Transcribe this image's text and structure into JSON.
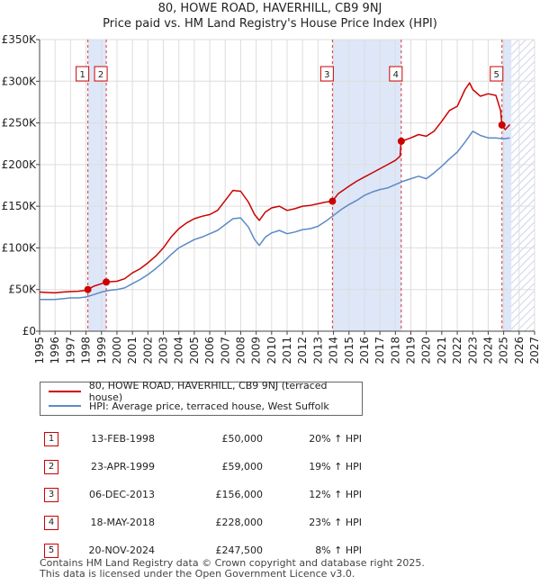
{
  "title": {
    "line1": "80, HOWE ROAD, HAVERHILL, CB9 9NJ",
    "line2": "Price paid vs. HM Land Registry's House Price Index (HPI)"
  },
  "legend": {
    "series1": "80, HOWE ROAD, HAVERHILL, CB9 9NJ (terraced house)",
    "series2": "HPI: Average price, terraced house, West Suffolk"
  },
  "colors": {
    "property": "#cc0000",
    "hpi": "#5b8ac6",
    "shade": "#dde7f8",
    "hatch": "#bcc8dc"
  },
  "sales": [
    {
      "num": "1",
      "date": "13-FEB-1998",
      "price": "£50,000",
      "hpi": "20% ↑ HPI"
    },
    {
      "num": "2",
      "date": "23-APR-1999",
      "price": "£59,000",
      "hpi": "19% ↑ HPI"
    },
    {
      "num": "3",
      "date": "06-DEC-2013",
      "price": "£156,000",
      "hpi": "12% ↑ HPI"
    },
    {
      "num": "4",
      "date": "18-MAY-2018",
      "price": "£228,000",
      "hpi": "23% ↑ HPI"
    },
    {
      "num": "5",
      "date": "20-NOV-2024",
      "price": "£247,500",
      "hpi": "8% ↑ HPI"
    }
  ],
  "footer": {
    "line1": "Contains HM Land Registry data © Crown copyright and database right 2025.",
    "line2": "This data is licensed under the Open Government Licence v3.0."
  },
  "chart_data": {
    "type": "line",
    "title": "Price paid vs. HM Land Registry's House Price Index (HPI)",
    "xlabel": "",
    "ylabel": "",
    "xlim": [
      1995,
      2027
    ],
    "ylim": [
      0,
      350000
    ],
    "yticks": [
      0,
      50000,
      100000,
      150000,
      200000,
      250000,
      300000,
      350000
    ],
    "ytick_labels": [
      "£0",
      "£50K",
      "£100K",
      "£150K",
      "£200K",
      "£250K",
      "£300K",
      "£350K"
    ],
    "xticks": [
      1995,
      1996,
      1997,
      1998,
      1999,
      2000,
      2001,
      2002,
      2003,
      2004,
      2005,
      2006,
      2007,
      2008,
      2009,
      2010,
      2011,
      2012,
      2013,
      2014,
      2015,
      2016,
      2017,
      2018,
      2019,
      2020,
      2021,
      2022,
      2023,
      2024,
      2025,
      2026,
      2027
    ],
    "grid": true,
    "shaded_periods": [
      [
        1998.12,
        1999.31
      ],
      [
        2013.93,
        2018.38
      ],
      [
        2024.89,
        2025.5
      ]
    ],
    "hatched_period": [
      2025.5,
      2027
    ],
    "sale_points": [
      {
        "label": "1",
        "x": 1998.12,
        "y": 50000
      },
      {
        "label": "2",
        "x": 1999.31,
        "y": 59000
      },
      {
        "label": "3",
        "x": 2013.93,
        "y": 156000
      },
      {
        "label": "4",
        "x": 2018.38,
        "y": 228000
      },
      {
        "label": "5",
        "x": 2024.89,
        "y": 247500
      }
    ],
    "series": [
      {
        "name": "80, HOWE ROAD, HAVERHILL, CB9 9NJ (terraced house)",
        "x": [
          1995,
          1995.5,
          1996,
          1996.5,
          1997,
          1997.5,
          1998,
          1998.12,
          1998.5,
          1999,
          1999.31,
          2000,
          2000.5,
          2001,
          2001.5,
          2002,
          2002.5,
          2003,
          2003.5,
          2004,
          2004.5,
          2005,
          2005.5,
          2006,
          2006.5,
          2007,
          2007.5,
          2008,
          2008.5,
          2008.9,
          2009.2,
          2009.6,
          2010,
          2010.5,
          2011,
          2011.5,
          2012,
          2012.5,
          2013,
          2013.5,
          2013.93,
          2014.3,
          2015,
          2015.5,
          2016,
          2016.5,
          2017,
          2017.5,
          2018,
          2018.3,
          2018.38,
          2018.7,
          2019,
          2019.5,
          2020,
          2020.5,
          2021,
          2021.5,
          2022,
          2022.5,
          2022.8,
          2023,
          2023.5,
          2024,
          2024.5,
          2024.8,
          2024.89,
          2025.1,
          2025.4
        ],
        "y": [
          47000,
          46500,
          46000,
          47000,
          47500,
          48000,
          49000,
          50000,
          54000,
          57000,
          59000,
          60000,
          63000,
          70000,
          75000,
          82000,
          90000,
          100000,
          113000,
          123000,
          130000,
          135000,
          138000,
          140000,
          145000,
          157000,
          169000,
          168000,
          155000,
          140000,
          133000,
          143000,
          148000,
          150000,
          145000,
          147000,
          150000,
          151000,
          153000,
          155000,
          156000,
          165000,
          174000,
          180000,
          185000,
          190000,
          195000,
          200000,
          205000,
          210000,
          228000,
          230000,
          232000,
          236000,
          234000,
          240000,
          252000,
          265000,
          270000,
          290000,
          298000,
          290000,
          282000,
          285000,
          283000,
          265000,
          247500,
          242000,
          248000
        ]
      },
      {
        "name": "HPI: Average price, terraced house, West Suffolk",
        "x": [
          1995,
          1995.5,
          1996,
          1996.5,
          1997,
          1997.5,
          1998,
          1998.5,
          1999,
          1999.5,
          2000,
          2000.5,
          2001,
          2001.5,
          2002,
          2002.5,
          2003,
          2003.5,
          2004,
          2004.5,
          2005,
          2005.5,
          2006,
          2006.5,
          2007,
          2007.5,
          2008,
          2008.5,
          2008.9,
          2009.2,
          2009.6,
          2010,
          2010.5,
          2011,
          2011.5,
          2012,
          2012.5,
          2013,
          2013.5,
          2014,
          2014.5,
          2015,
          2015.5,
          2016,
          2016.5,
          2017,
          2017.5,
          2018,
          2018.5,
          2019,
          2019.5,
          2020,
          2020.5,
          2021,
          2021.5,
          2022,
          2022.5,
          2023,
          2023.5,
          2024,
          2024.5,
          2025,
          2025.4
        ],
        "y": [
          38000,
          38000,
          38000,
          39000,
          40000,
          40000,
          41000,
          44000,
          47000,
          49000,
          50000,
          52000,
          57000,
          62000,
          68000,
          75000,
          83000,
          92000,
          100000,
          105000,
          110000,
          113000,
          117000,
          121000,
          128000,
          135000,
          136000,
          125000,
          110000,
          103000,
          113000,
          118000,
          121000,
          117000,
          119000,
          122000,
          123000,
          126000,
          132000,
          139000,
          146000,
          152000,
          157000,
          163000,
          167000,
          170000,
          172000,
          176000,
          180000,
          183000,
          186000,
          183000,
          190000,
          198000,
          207000,
          215000,
          227000,
          240000,
          235000,
          232000,
          232000,
          231000,
          232000
        ]
      }
    ]
  }
}
